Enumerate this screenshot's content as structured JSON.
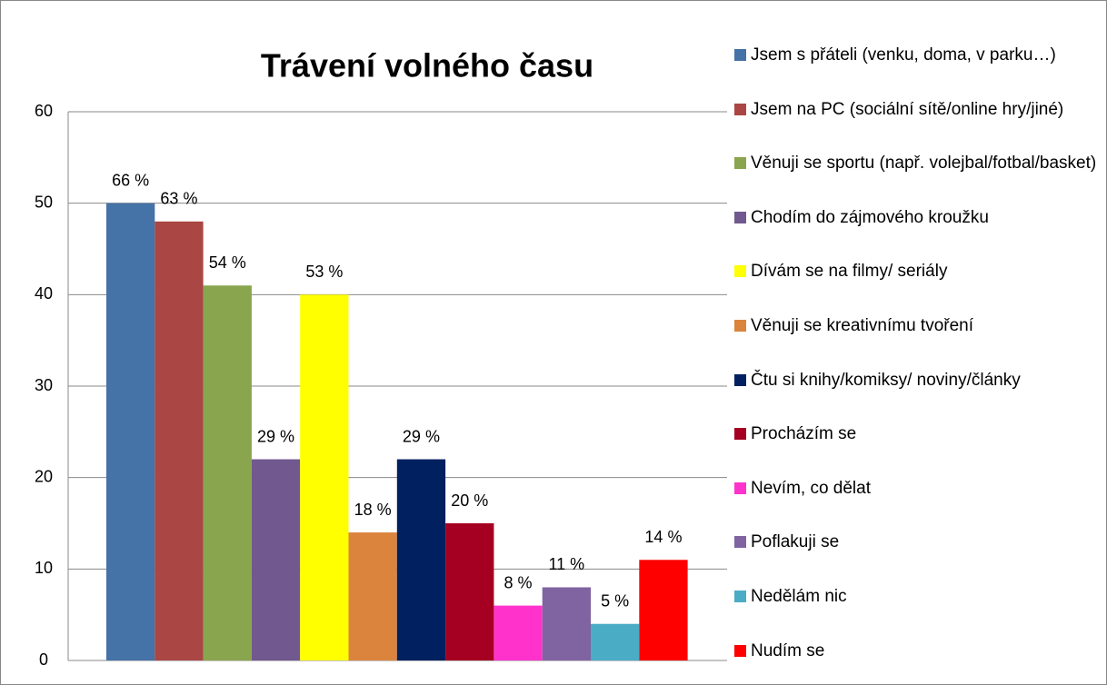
{
  "chart_data": {
    "type": "bar",
    "title": "Trávení volného času",
    "categories": [
      null
    ],
    "ylim": [
      0,
      60
    ],
    "yticks": [
      0,
      10,
      20,
      30,
      40,
      50,
      60
    ],
    "grid": true,
    "legend": "right",
    "series": [
      {
        "name": "Jsem s přáteli (venku, doma, v parku…)",
        "color": "#4572a7",
        "values": [
          50
        ],
        "value_labels": [
          "66 %"
        ]
      },
      {
        "name": "Jsem na PC (sociální sítě/online hry/jiné)",
        "color": "#aa4643",
        "values": [
          48
        ],
        "value_labels": [
          "63 %"
        ]
      },
      {
        "name": "Věnuji se sportu (např. volejbal/fotbal/basket)",
        "color": "#89a54e",
        "values": [
          41
        ],
        "value_labels": [
          "54 %"
        ]
      },
      {
        "name": "Chodím do zájmového kroužku",
        "color": "#71588f",
        "values": [
          22
        ],
        "value_labels": [
          "29 %"
        ]
      },
      {
        "name": "Dívám se na filmy/ seriály",
        "color": "#ffff00",
        "values": [
          40
        ],
        "value_labels": [
          "53 %"
        ]
      },
      {
        "name": "Věnuji se kreativnímu tvoření",
        "color": "#db843d",
        "values": [
          14
        ],
        "value_labels": [
          "18 %"
        ]
      },
      {
        "name": "Čtu si knihy/komiksy/ noviny/články",
        "color": "#002060",
        "values": [
          22
        ],
        "value_labels": [
          "29 %"
        ]
      },
      {
        "name": "Procházím se",
        "color": "#a50021",
        "values": [
          15
        ],
        "value_labels": [
          "20 %"
        ]
      },
      {
        "name": "Nevím, co dělat",
        "color": "#ff33cc",
        "values": [
          6
        ],
        "value_labels": [
          "8 %"
        ]
      },
      {
        "name": "Poflakuji se",
        "color": "#8064a2",
        "values": [
          8
        ],
        "value_labels": [
          "11 %"
        ]
      },
      {
        "name": "Nedělám nic",
        "color": "#4bacc6",
        "values": [
          4
        ],
        "value_labels": [
          "5 %"
        ]
      },
      {
        "name": "Nudím se",
        "color": "#ff0000",
        "values": [
          11
        ],
        "value_labels": [
          "14 %"
        ]
      }
    ]
  }
}
